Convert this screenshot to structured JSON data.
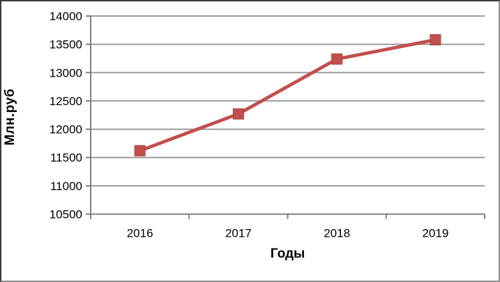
{
  "chart_data": {
    "type": "line",
    "title": "",
    "xlabel": "Годы",
    "ylabel": "Млн.руб",
    "categories": [
      "2016",
      "2017",
      "2018",
      "2019"
    ],
    "series": [
      {
        "values": [
          11620,
          12270,
          13240,
          13580
        ],
        "color": "#c0504d",
        "marker": "square"
      }
    ],
    "ylim": [
      10500,
      14000
    ],
    "ytick_step": 500,
    "grid": "horizontal-solid",
    "legend_position": "none"
  },
  "style": {
    "line_color": "#c0504d",
    "marker_color": "#c0504d",
    "marker_edge_color": "#a8403d",
    "gridline_color": "#9b9b9b",
    "axis_color": "#808080",
    "text_color": "#000000",
    "background_color": "#ffffff"
  }
}
